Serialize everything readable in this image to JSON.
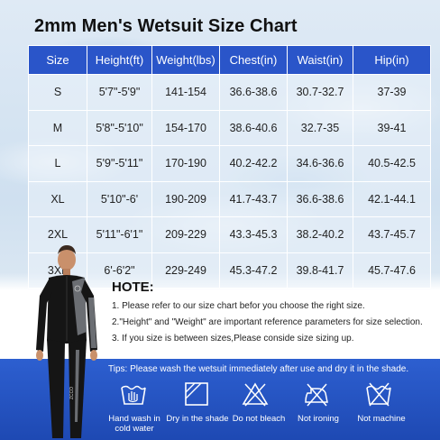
{
  "title": "2mm Men's Wetsuit Size Chart",
  "table": {
    "headers": [
      "Size",
      "Height(ft)",
      "Weight(lbs)",
      "Chest(in)",
      "Waist(in)",
      "Hip(in)"
    ],
    "rows": [
      [
        "S",
        "5'7\"-5'9\"",
        "141-154",
        "36.6-38.6",
        "30.7-32.7",
        "37-39"
      ],
      [
        "M",
        "5'8\"-5'10\"",
        "154-170",
        "38.6-40.6",
        "32.7-35",
        "39-41"
      ],
      [
        "L",
        "5'9\"-5'11\"",
        "170-190",
        "40.2-42.2",
        "34.6-36.6",
        "40.5-42.5"
      ],
      [
        "XL",
        "5'10\"-6'",
        "190-209",
        "41.7-43.7",
        "36.6-38.6",
        "42.1-44.1"
      ],
      [
        "2XL",
        "5'11\"-6'1\"",
        "209-229",
        "43.3-45.3",
        "38.2-40.2",
        "43.7-45.7"
      ],
      [
        "3XL",
        "6'-6'2\"",
        "229-249",
        "45.3-47.2",
        "39.8-41.7",
        "45.7-47.6"
      ]
    ]
  },
  "note_title": "HOTE:",
  "notes": [
    "1. Please refer to our size chart befor you choose the right size.",
    "2.\"Height\" and \"Weight\" are important reference parameters for size selection.",
    "3. If you size is between sizes,Please conside size sizing up."
  ],
  "tips": "Tips: Please wash the wetsuit immediately after use and dry it in the shade.",
  "care": [
    {
      "icon": "hand-wash-icon",
      "label_line1": "Hand wash in",
      "label_line2": "cold water"
    },
    {
      "icon": "dry-in-shade-icon",
      "label_line1": "Dry in the shade",
      "label_line2": ""
    },
    {
      "icon": "no-bleach-icon",
      "label_line1": "Do not bleach",
      "label_line2": ""
    },
    {
      "icon": "no-ironing-icon",
      "label_line1": "Not ironing",
      "label_line2": ""
    },
    {
      "icon": "no-machine-wash-icon",
      "label_line1": "Not machine",
      "label_line2": ""
    }
  ],
  "colors": {
    "header_blue": "#2a55c9",
    "panel_blue": "#1e49b3",
    "wetsuit_black": "#151515",
    "wetsuit_gray": "#6b6e73"
  },
  "wetsuit_logo_text": "ZCCO"
}
